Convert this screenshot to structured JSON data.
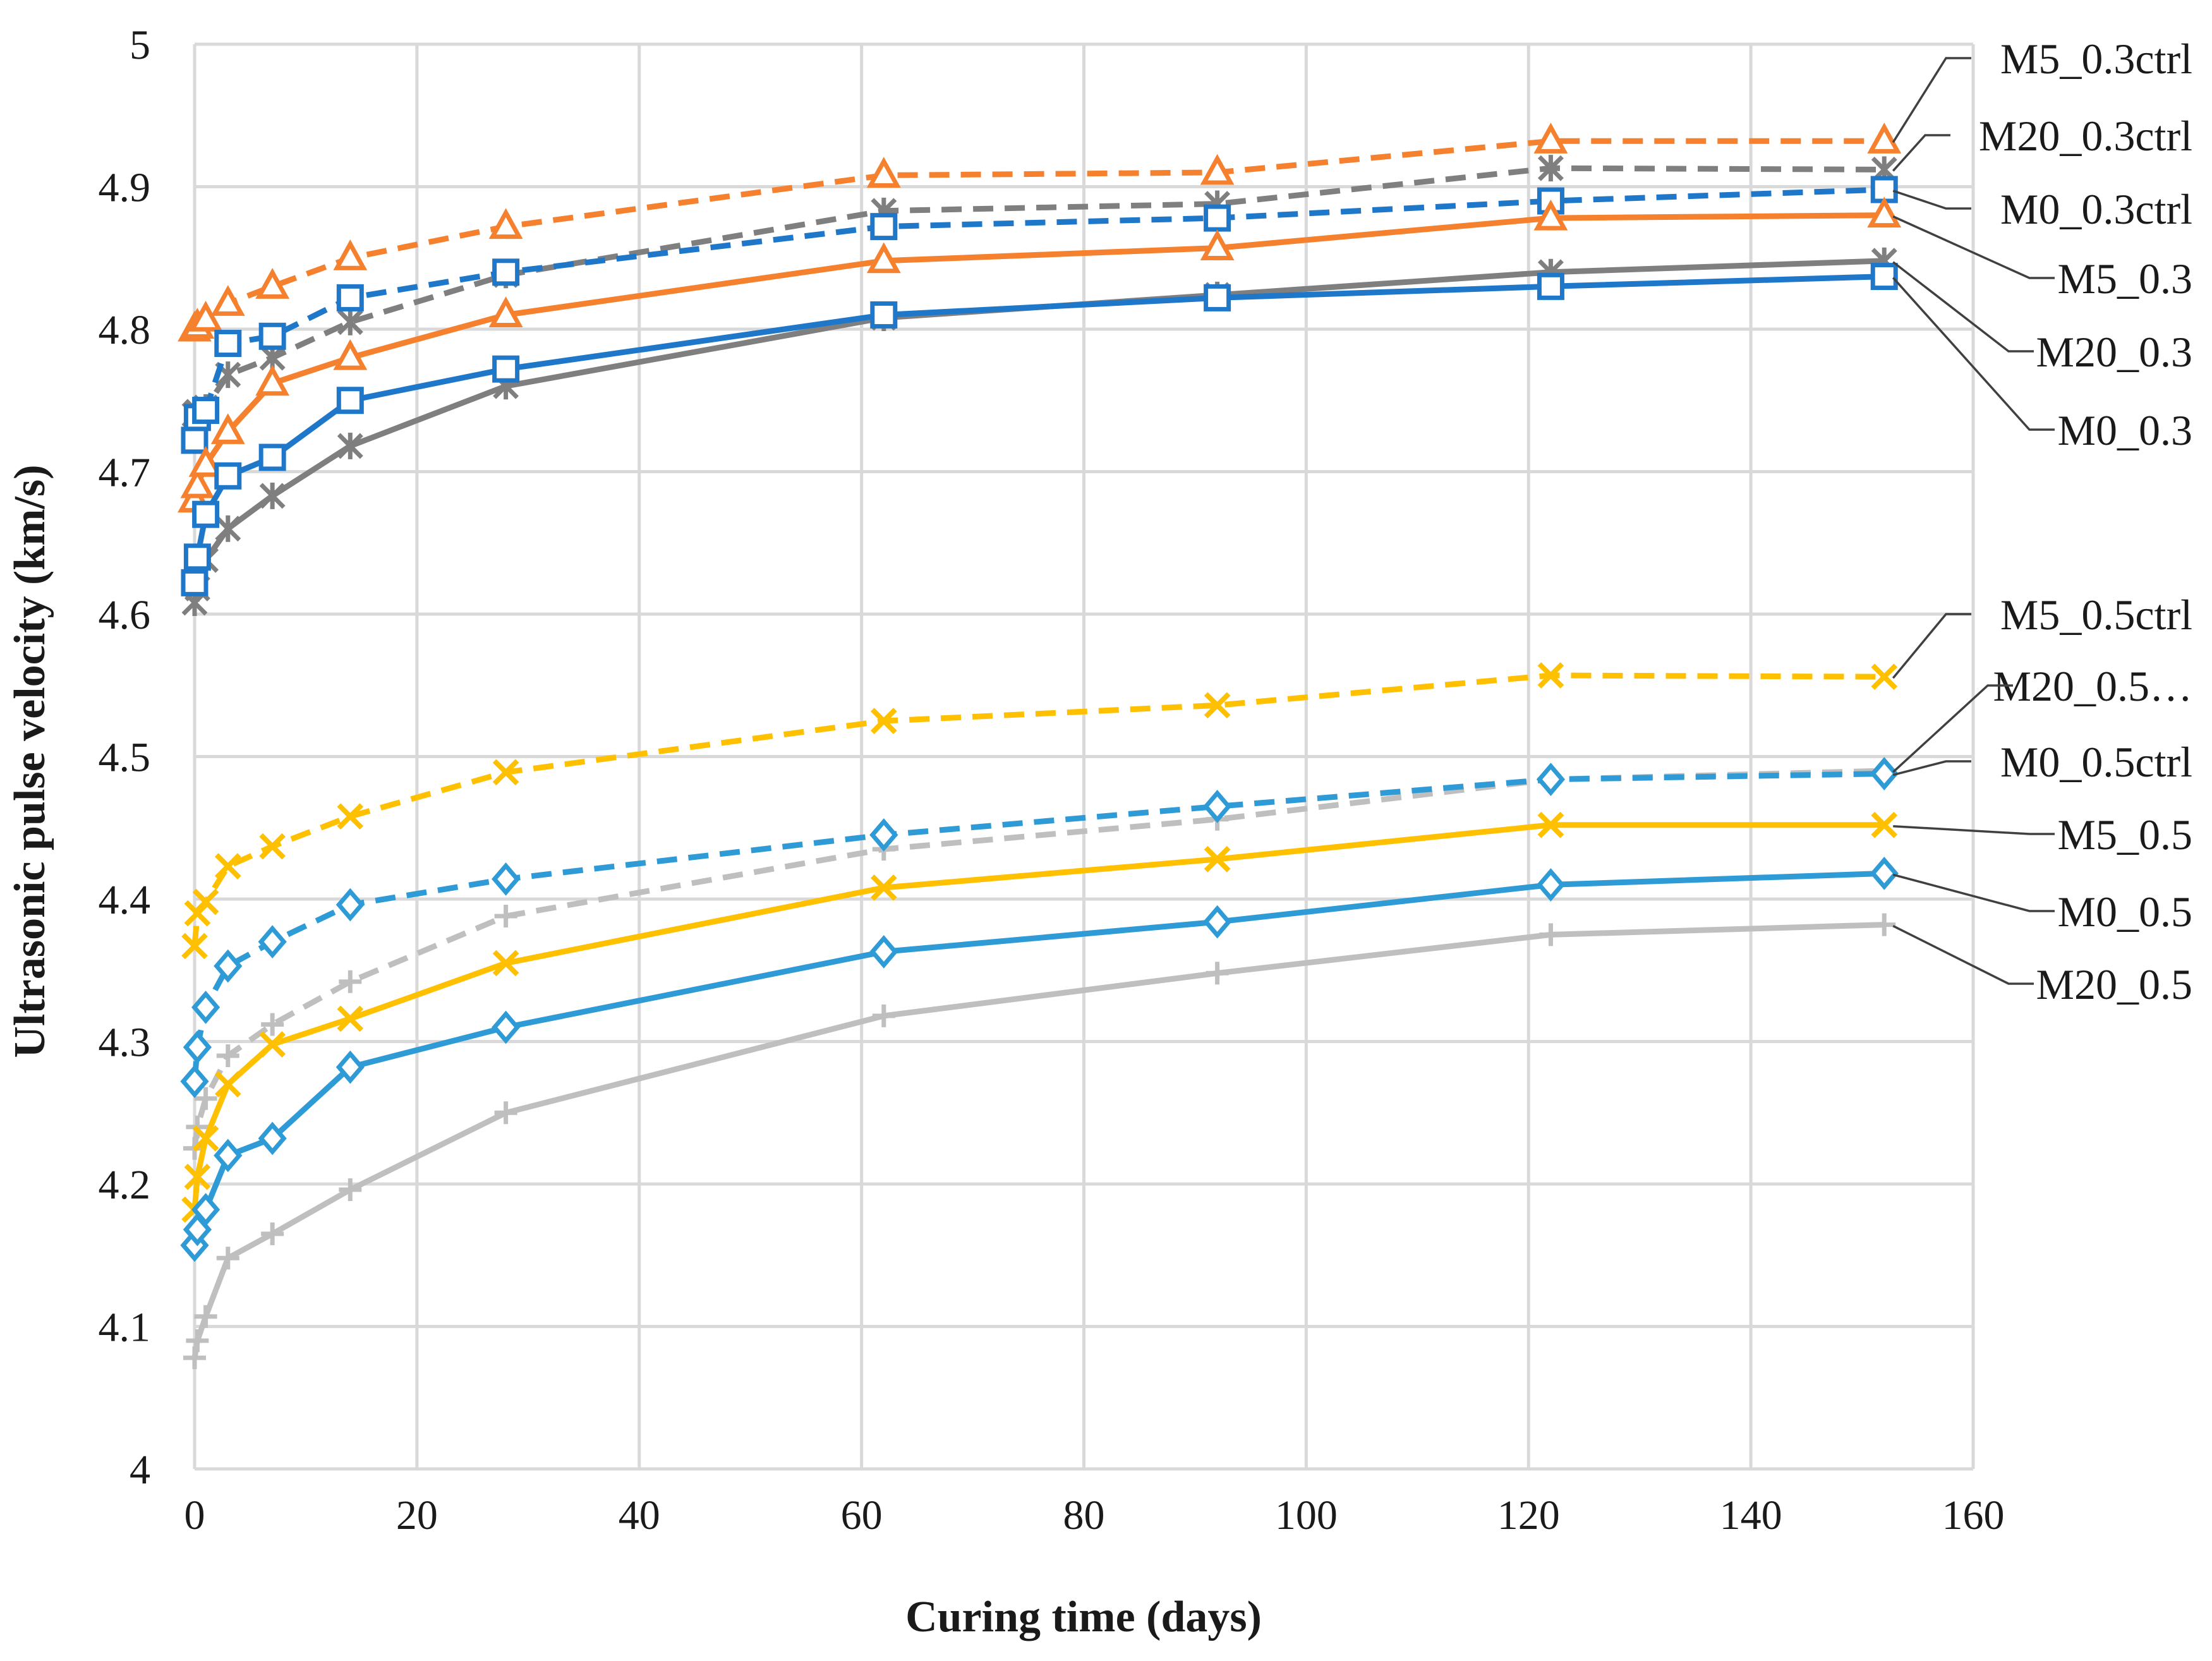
{
  "chart_data": {
    "type": "line",
    "title": "",
    "xlabel": "Curing time (days)",
    "ylabel": "Ultrasonic pulse velocity (km/s)",
    "xlim": [
      0,
      160
    ],
    "ylim": [
      4.0,
      5.0
    ],
    "xticks": [
      0,
      20,
      40,
      60,
      80,
      100,
      120,
      140,
      160
    ],
    "yticks": [
      4,
      4.1,
      4.2,
      4.3,
      4.4,
      4.5,
      4.6,
      4.7,
      4.8,
      4.9,
      5
    ],
    "ytick_labels": [
      "4",
      "4.1",
      "4.2",
      "4.3",
      "4.4",
      "4.5",
      "4.6",
      "4.7",
      "4.8",
      "4.9",
      "5"
    ],
    "grid": true,
    "legend": "callout labels at right",
    "series": [
      {
        "name": "M5_0.3ctrl",
        "label": "M5_0.3ctrl",
        "color": "#F5812E",
        "dash": "dashed",
        "marker": "triangle",
        "x": [
          0,
          0.25,
          1,
          3,
          7,
          14,
          28,
          62,
          92,
          122,
          152
        ],
        "y": [
          4.8,
          4.802,
          4.807,
          4.818,
          4.83,
          4.85,
          4.872,
          4.908,
          4.91,
          4.932,
          4.932
        ]
      },
      {
        "name": "M20_0.3ctrl",
        "label": "M20_0.3ctrl",
        "color": "#7F7F7F",
        "dash": "dashed",
        "marker": "asterisk",
        "x": [
          0,
          0.25,
          1,
          3,
          7,
          14,
          28,
          62,
          92,
          122,
          152
        ],
        "y": [
          4.74,
          4.742,
          4.745,
          4.768,
          4.78,
          4.805,
          4.838,
          4.883,
          4.888,
          4.913,
          4.912
        ]
      },
      {
        "name": "M0_0.3ctrl",
        "label": "M0_0.3ctrl",
        "color": "#1F77C9",
        "dash": "dashed",
        "marker": "square",
        "x": [
          0,
          0.25,
          1,
          3,
          7,
          14,
          28,
          62,
          92,
          122,
          152
        ],
        "y": [
          4.722,
          4.738,
          4.743,
          4.79,
          4.795,
          4.822,
          4.84,
          4.872,
          4.878,
          4.89,
          4.898
        ]
      },
      {
        "name": "M5_0.3",
        "label": "M5_0.3",
        "color": "#F5812E",
        "dash": "solid",
        "marker": "triangle",
        "x": [
          0,
          0.25,
          1,
          3,
          7,
          14,
          28,
          62,
          92,
          122,
          152
        ],
        "y": [
          4.68,
          4.69,
          4.705,
          4.728,
          4.762,
          4.78,
          4.81,
          4.848,
          4.857,
          4.878,
          4.88
        ]
      },
      {
        "name": "M20_0.3",
        "label": "M20_0.3",
        "color": "#7F7F7F",
        "dash": "solid",
        "marker": "asterisk",
        "x": [
          0,
          0.25,
          1,
          3,
          7,
          14,
          28,
          62,
          92,
          122,
          152
        ],
        "y": [
          4.608,
          4.618,
          4.638,
          4.66,
          4.683,
          4.718,
          4.76,
          4.808,
          4.824,
          4.84,
          4.848
        ]
      },
      {
        "name": "M0_0.3",
        "label": "M0_0.3",
        "color": "#1F77C9",
        "dash": "solid",
        "marker": "square",
        "x": [
          0,
          0.25,
          1,
          3,
          7,
          14,
          28,
          62,
          92,
          122,
          152
        ],
        "y": [
          4.622,
          4.64,
          4.67,
          4.697,
          4.71,
          4.75,
          4.772,
          4.81,
          4.822,
          4.83,
          4.837
        ]
      },
      {
        "name": "M5_0.5ctrl",
        "label": "M5_0.5ctrl",
        "color": "#FFC000",
        "dash": "dashed",
        "marker": "x",
        "x": [
          0,
          0.25,
          1,
          3,
          7,
          14,
          28,
          62,
          92,
          122,
          152
        ],
        "y": [
          4.367,
          4.39,
          4.398,
          4.423,
          4.437,
          4.458,
          4.489,
          4.525,
          4.536,
          4.557,
          4.556
        ]
      },
      {
        "name": "M20_0.5ctrl",
        "label": "M20_0.5…",
        "color": "#BFBFBF",
        "dash": "dashed",
        "marker": "plus",
        "x": [
          0,
          0.25,
          1,
          3,
          7,
          14,
          28,
          62,
          92,
          122,
          152
        ],
        "y": [
          4.225,
          4.24,
          4.26,
          4.29,
          4.312,
          4.342,
          4.388,
          4.435,
          4.456,
          4.484,
          4.49
        ]
      },
      {
        "name": "M0_0.5ctrl",
        "label": "M0_0.5ctrl",
        "color": "#2E9BD6",
        "dash": "dashed",
        "marker": "diamond",
        "x": [
          0,
          0.25,
          1,
          3,
          7,
          14,
          28,
          62,
          92,
          122,
          152
        ],
        "y": [
          4.272,
          4.296,
          4.324,
          4.353,
          4.37,
          4.396,
          4.414,
          4.445,
          4.465,
          4.484,
          4.488
        ]
      },
      {
        "name": "M5_0.5",
        "label": "M5_0.5",
        "color": "#FFC000",
        "dash": "solid",
        "marker": "x",
        "x": [
          0,
          0.25,
          1,
          3,
          7,
          14,
          28,
          62,
          92,
          122,
          152
        ],
        "y": [
          4.182,
          4.205,
          4.232,
          4.27,
          4.298,
          4.316,
          4.355,
          4.408,
          4.428,
          4.452,
          4.452
        ]
      },
      {
        "name": "M0_0.5",
        "label": "M0_0.5",
        "color": "#2E9BD6",
        "dash": "solid",
        "marker": "diamond",
        "x": [
          0,
          0.25,
          1,
          3,
          7,
          14,
          28,
          62,
          92,
          122,
          152
        ],
        "y": [
          4.157,
          4.168,
          4.182,
          4.22,
          4.232,
          4.282,
          4.31,
          4.363,
          4.384,
          4.41,
          4.418
        ]
      },
      {
        "name": "M20_0.5",
        "label": "M20_0.5",
        "color": "#BFBFBF",
        "dash": "solid",
        "marker": "plus",
        "x": [
          0,
          0.25,
          1,
          3,
          7,
          14,
          28,
          62,
          92,
          122,
          152
        ],
        "y": [
          4.078,
          4.09,
          4.107,
          4.148,
          4.165,
          4.196,
          4.25,
          4.318,
          4.348,
          4.375,
          4.382
        ]
      }
    ]
  }
}
